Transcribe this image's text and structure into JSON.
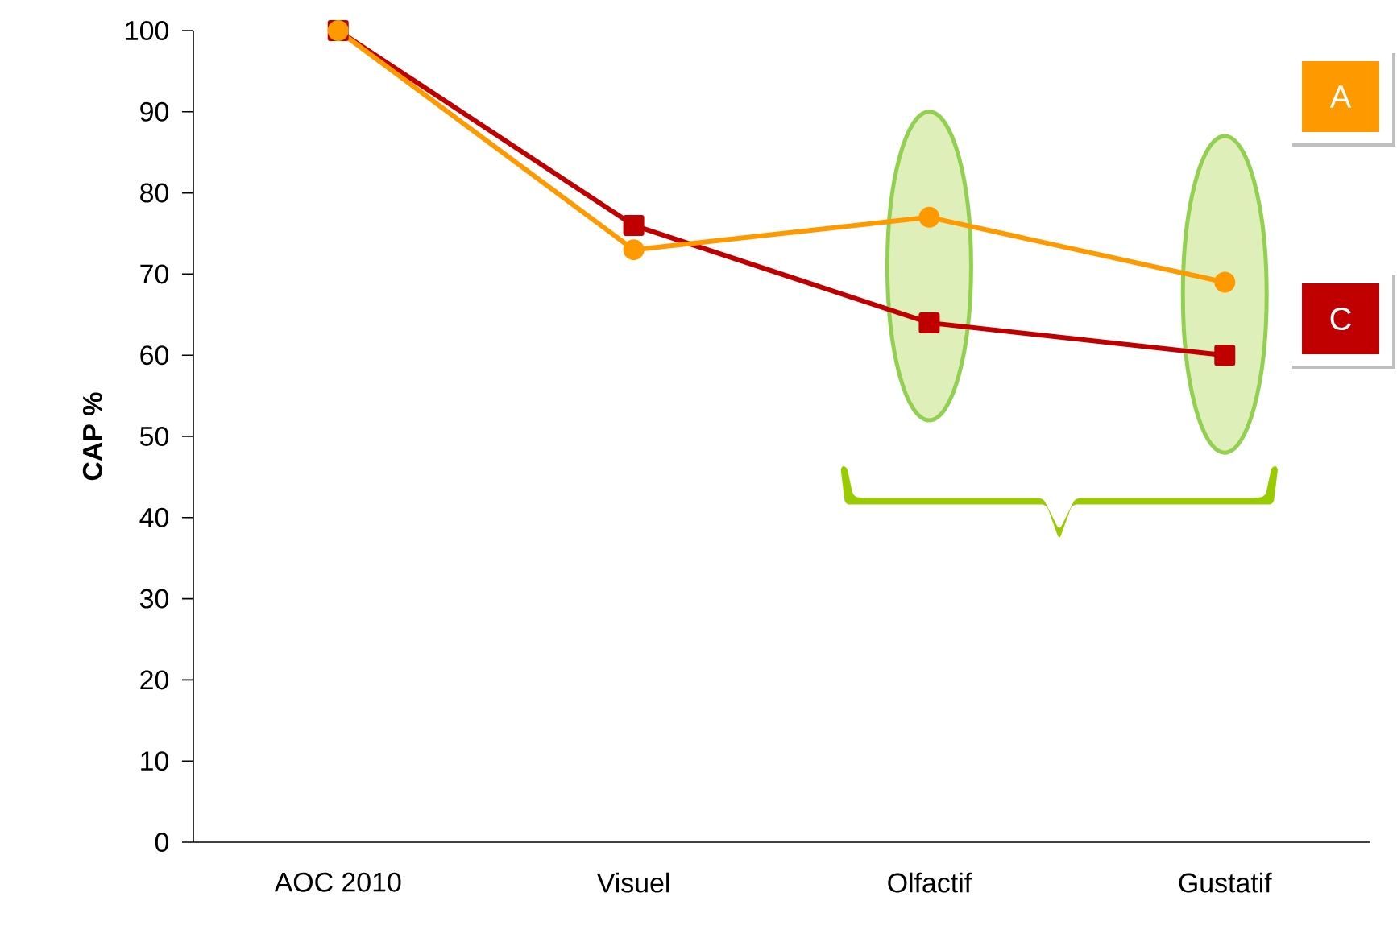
{
  "chart_data": {
    "type": "line",
    "ylabel": "CAP %",
    "categories": [
      "AOC 2010",
      "Visuel",
      "Olfactif",
      "Gustatif"
    ],
    "series": [
      {
        "name": "A",
        "color": "#ff9900",
        "marker": "circle",
        "values": [
          100,
          73,
          77,
          69
        ]
      },
      {
        "name": "C",
        "color": "#c00000",
        "marker": "square",
        "values": [
          100,
          76,
          64,
          60
        ]
      }
    ],
    "ylim": [
      0,
      100
    ],
    "yticks": [
      0,
      10,
      20,
      30,
      40,
      50,
      60,
      70,
      80,
      90,
      100
    ],
    "legend": "right",
    "grid": false
  }
}
